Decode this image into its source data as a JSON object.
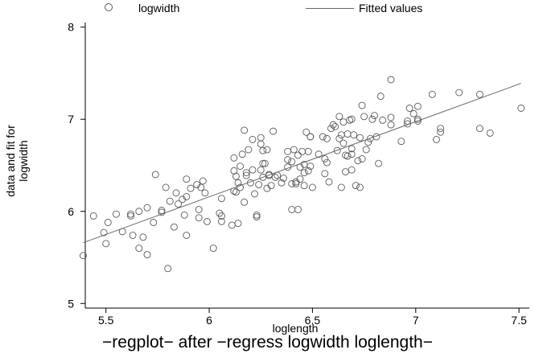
{
  "chart_data": {
    "type": "scatter",
    "title": "",
    "caption": "−regplot− after −regress logwidth loglength−",
    "xlabel": "loglength",
    "ylabel": "data and fit for logwidth",
    "xlim": [
      5.4,
      7.55
    ],
    "ylim": [
      4.95,
      8.05
    ],
    "xticks": [
      5.5,
      6,
      6.5,
      7,
      7.5
    ],
    "yticks": [
      5,
      6,
      7,
      8
    ],
    "grid": false,
    "legend_position": "top",
    "series": [
      {
        "name": "logwidth",
        "kind": "scatter",
        "marker": "hollow-circle",
        "color": "#5a5a5a",
        "points": [
          [
            5.39,
            5.52
          ],
          [
            5.44,
            5.95
          ],
          [
            5.49,
            5.77
          ],
          [
            5.5,
            5.65
          ],
          [
            5.51,
            5.88
          ],
          [
            5.55,
            5.97
          ],
          [
            5.58,
            5.78
          ],
          [
            5.62,
            5.95
          ],
          [
            5.62,
            5.97
          ],
          [
            5.63,
            5.74
          ],
          [
            5.66,
            5.6
          ],
          [
            5.66,
            6.0
          ],
          [
            5.68,
            5.72
          ],
          [
            5.7,
            5.53
          ],
          [
            5.7,
            6.04
          ],
          [
            5.73,
            5.88
          ],
          [
            5.74,
            6.4
          ],
          [
            5.77,
            6.01
          ],
          [
            5.77,
            5.99
          ],
          [
            5.79,
            6.26
          ],
          [
            5.8,
            5.38
          ],
          [
            5.81,
            6.11
          ],
          [
            5.83,
            5.83
          ],
          [
            5.84,
            6.2
          ],
          [
            5.85,
            6.08
          ],
          [
            5.87,
            6.13
          ],
          [
            5.88,
            5.96
          ],
          [
            5.89,
            6.35
          ],
          [
            5.89,
            5.74
          ],
          [
            5.89,
            6.16
          ],
          [
            5.91,
            6.25
          ],
          [
            5.94,
            6.29
          ],
          [
            5.95,
            6.02
          ],
          [
            5.95,
            5.93
          ],
          [
            5.96,
            6.26
          ],
          [
            5.97,
            6.33
          ],
          [
            5.98,
            6.2
          ],
          [
            5.99,
            5.89
          ],
          [
            6.02,
            5.6
          ],
          [
            6.05,
            5.98
          ],
          [
            6.06,
            5.95
          ],
          [
            6.06,
            5.89
          ],
          [
            6.06,
            6.14
          ],
          [
            6.11,
            5.85
          ],
          [
            6.12,
            6.44
          ],
          [
            6.12,
            6.58
          ],
          [
            6.12,
            6.22
          ],
          [
            6.13,
            6.38
          ],
          [
            6.13,
            6.21
          ],
          [
            6.14,
            5.87
          ],
          [
            6.14,
            6.31
          ],
          [
            6.15,
            6.26
          ],
          [
            6.15,
            6.49
          ],
          [
            6.16,
            6.62
          ],
          [
            6.17,
            6.88
          ],
          [
            6.17,
            6.1
          ],
          [
            6.18,
            6.39
          ],
          [
            6.18,
            6.42
          ],
          [
            6.19,
            6.67
          ],
          [
            6.2,
            6.31
          ],
          [
            6.21,
            6.78
          ],
          [
            6.21,
            6.45
          ],
          [
            6.22,
            6.19
          ],
          [
            6.23,
            5.94
          ],
          [
            6.23,
            5.96
          ],
          [
            6.24,
            6.29
          ],
          [
            6.25,
            6.8
          ],
          [
            6.25,
            6.73
          ],
          [
            6.25,
            6.45
          ],
          [
            6.26,
            6.66
          ],
          [
            6.26,
            6.52
          ],
          [
            6.26,
            6.37
          ],
          [
            6.27,
            6.52
          ],
          [
            6.28,
            6.25
          ],
          [
            6.28,
            6.67
          ],
          [
            6.29,
            6.39
          ],
          [
            6.29,
            6.4
          ],
          [
            6.3,
            6.28
          ],
          [
            6.31,
            6.87
          ],
          [
            6.32,
            6.37
          ],
          [
            6.33,
            6.39
          ],
          [
            6.35,
            6.31
          ],
          [
            6.36,
            6.36
          ],
          [
            6.38,
            6.48
          ],
          [
            6.38,
            6.65
          ],
          [
            6.38,
            6.56
          ],
          [
            6.4,
            6.54
          ],
          [
            6.4,
            6.3
          ],
          [
            6.4,
            6.02
          ],
          [
            6.41,
            6.67
          ],
          [
            6.42,
            6.32
          ],
          [
            6.42,
            6.3
          ],
          [
            6.43,
            6.61
          ],
          [
            6.43,
            6.02
          ],
          [
            6.44,
            6.48
          ],
          [
            6.44,
            6.35
          ],
          [
            6.45,
            6.65
          ],
          [
            6.46,
            6.51
          ],
          [
            6.46,
            6.42
          ],
          [
            6.46,
            6.28
          ],
          [
            6.47,
            6.86
          ],
          [
            6.48,
            6.65
          ],
          [
            6.48,
            6.44
          ],
          [
            6.49,
            6.81
          ],
          [
            6.49,
            6.81
          ],
          [
            6.49,
            6.49
          ],
          [
            6.5,
            6.26
          ],
          [
            6.53,
            6.62
          ],
          [
            6.55,
            6.81
          ],
          [
            6.56,
            6.57
          ],
          [
            6.56,
            6.41
          ],
          [
            6.57,
            6.79
          ],
          [
            6.57,
            6.53
          ],
          [
            6.58,
            6.32
          ],
          [
            6.59,
            6.9
          ],
          [
            6.6,
            6.94
          ],
          [
            6.61,
            6.92
          ],
          [
            6.62,
            6.66
          ],
          [
            6.63,
            7.03
          ],
          [
            6.63,
            6.79
          ],
          [
            6.64,
            6.83
          ],
          [
            6.64,
            6.26
          ],
          [
            6.65,
            6.74
          ],
          [
            6.65,
            6.97
          ],
          [
            6.66,
            6.43
          ],
          [
            6.66,
            6.61
          ],
          [
            6.67,
            6.84
          ],
          [
            6.67,
            6.6
          ],
          [
            6.68,
            6.99
          ],
          [
            6.69,
            6.62
          ],
          [
            6.69,
            7.0
          ],
          [
            6.69,
            6.68
          ],
          [
            6.69,
            6.45
          ],
          [
            6.7,
            6.83
          ],
          [
            6.71,
            6.28
          ],
          [
            6.72,
            6.55
          ],
          [
            6.73,
            6.8
          ],
          [
            6.73,
            6.26
          ],
          [
            6.74,
            6.57
          ],
          [
            6.74,
            7.15
          ],
          [
            6.75,
            7.03
          ],
          [
            6.76,
            6.67
          ],
          [
            6.77,
            6.75
          ],
          [
            6.78,
            6.79
          ],
          [
            6.79,
            7.0
          ],
          [
            6.8,
            7.04
          ],
          [
            6.81,
            6.81
          ],
          [
            6.82,
            6.52
          ],
          [
            6.83,
            7.25
          ],
          [
            6.84,
            6.99
          ],
          [
            6.88,
            6.94
          ],
          [
            6.88,
            7.43
          ],
          [
            6.88,
            7.02
          ],
          [
            6.93,
            6.76
          ],
          [
            6.96,
            6.98
          ],
          [
            6.96,
            6.95
          ],
          [
            6.97,
            7.12
          ],
          [
            6.99,
            7.06
          ],
          [
            7.01,
            7.0
          ],
          [
            7.01,
            6.98
          ],
          [
            7.01,
            7.14
          ],
          [
            7.08,
            7.27
          ],
          [
            7.1,
            6.78
          ],
          [
            7.12,
            6.9
          ],
          [
            7.12,
            6.86
          ],
          [
            7.21,
            7.29
          ],
          [
            7.31,
            6.9
          ],
          [
            7.31,
            7.27
          ],
          [
            7.36,
            6.85
          ],
          [
            7.51,
            7.12
          ]
        ]
      },
      {
        "name": "Fitted values",
        "kind": "line",
        "color": "#6a6a6a",
        "x": [
          5.39,
          7.51
        ],
        "y": [
          5.66,
          7.39
        ]
      }
    ]
  }
}
